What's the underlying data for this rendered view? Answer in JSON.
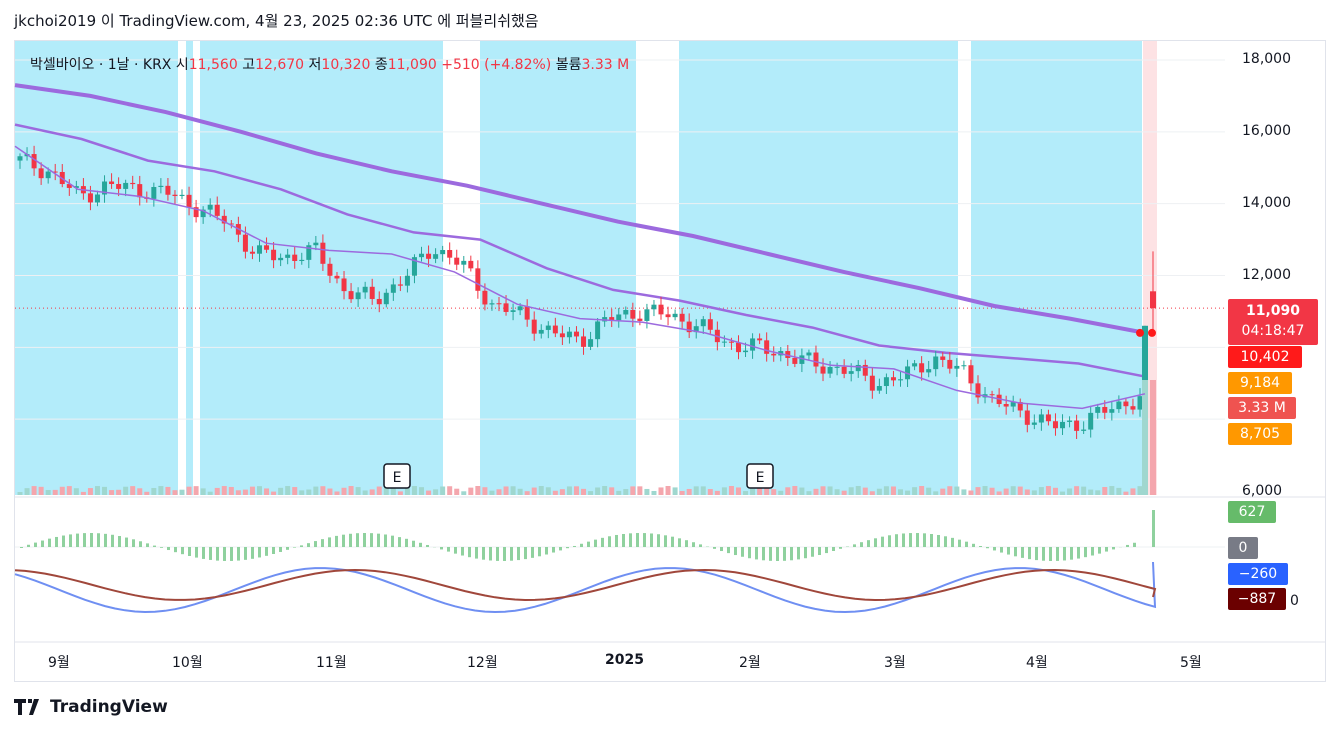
{
  "header": {
    "publish_line": "jkchoi2019 이 TradingView.com, 4월 23, 2025 02:36 UTC 에 퍼블리쉬했음"
  },
  "legend": {
    "symbol": "박셀바이오 · 1날 · KRX",
    "open_label": "시",
    "open": "11,560",
    "high_label": "고",
    "high": "12,670",
    "low_label": "저",
    "low": "10,320",
    "close_label": "종",
    "close": "11,090",
    "change": "+510 (+4.82%)",
    "volume_label": "볼륨",
    "volume": "3.33 M"
  },
  "price_axis": [
    "18,000",
    "16,000",
    "14,000",
    "12,000",
    "6,000"
  ],
  "osc_axis_partial": "0",
  "price_badges": {
    "last_price": "11,090",
    "countdown": "04:18:47",
    "ma_long": "10,402",
    "ma_mid": "9,184",
    "volume": "3.33 M",
    "ma_short": "8,705"
  },
  "osc_badges": {
    "hist": "627",
    "zero": "0",
    "macd": "−260",
    "signal": "−887"
  },
  "x_axis": [
    "9월",
    "10월",
    "11월",
    "12월",
    "2025",
    "2월",
    "3월",
    "4월",
    "5월"
  ],
  "earnings_marker": "E",
  "footer": {
    "brand": "TradingView"
  },
  "colors": {
    "up": "#26a69a",
    "down": "#f23645",
    "shade": "#b3ecfa",
    "ma": "#9c6ade",
    "macd": "#6f8ff2",
    "signal": "#a0473b",
    "hist": "#8fd19e"
  },
  "chart_data": {
    "type": "candlestick",
    "y_range": [
      6000,
      18000
    ],
    "last": {
      "open": 11560,
      "high": 12670,
      "low": 10320,
      "close": 11090,
      "change": 510,
      "change_pct": 4.82,
      "volume": "3.33 M"
    },
    "ma_long_series": [
      17300,
      17000,
      16550,
      16000,
      15400,
      14900,
      14500,
      14000,
      13500,
      13100,
      12600,
      12100,
      11650,
      11150,
      10800,
      10402
    ],
    "ma_mid_series": [
      16200,
      15800,
      15200,
      14900,
      14400,
      13700,
      13200,
      13000,
      12200,
      11600,
      11300,
      10900,
      10550,
      10050,
      9850,
      9700,
      9550,
      9184
    ],
    "ma_short_series": [
      15600,
      14400,
      14200,
      13800,
      12900,
      12700,
      12600,
      12100,
      11200,
      10800,
      10700,
      10400,
      9900,
      9500,
      9400,
      8800,
      8450,
      8300,
      8705
    ],
    "close_series": [
      15200,
      14900,
      14200,
      14500,
      14400,
      14300,
      13900,
      13500,
      12600,
      12500,
      12700,
      11600,
      11300,
      11900,
      12800,
      12300,
      11200,
      10900,
      10400,
      10200,
      10800,
      11000,
      10900,
      10600,
      10100,
      10000,
      9800,
      9500,
      9400,
      9000,
      9200,
      9700,
      9300,
      8500,
      8200,
      7800,
      7900,
      8300,
      8600,
      11090
    ],
    "macd": {
      "hist_last": 627,
      "macd_last": -260,
      "signal_last": -887
    }
  }
}
